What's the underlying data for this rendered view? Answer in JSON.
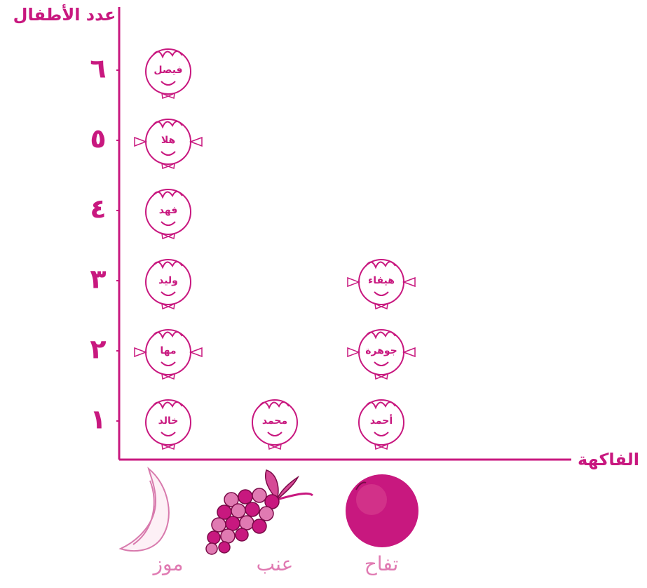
{
  "chart_data": {
    "type": "pictograph",
    "y_label": "عدد الأطفال",
    "x_label": "الفاكهة",
    "categories": [
      "موز",
      "عنب",
      "تفاح"
    ],
    "values": [
      6,
      1,
      3
    ],
    "faces": [
      [
        {
          "name": "خالد",
          "bows": false
        },
        {
          "name": "مها",
          "bows": true
        },
        {
          "name": "وليد",
          "bows": false
        },
        {
          "name": "فهد",
          "bows": false
        },
        {
          "name": "هلا",
          "bows": true
        },
        {
          "name": "فيصل",
          "bows": false
        }
      ],
      [
        {
          "name": "محمد",
          "bows": false
        }
      ],
      [
        {
          "name": "أحمد",
          "bows": false
        },
        {
          "name": "جوهرة",
          "bows": true
        },
        {
          "name": "هيفاء",
          "bows": true
        }
      ]
    ],
    "color": "#c8187f",
    "ylim": [
      0.45,
      6.9
    ],
    "yticks": [
      {
        "value": 1,
        "label": "١"
      },
      {
        "value": 2,
        "label": "٢"
      },
      {
        "value": 3,
        "label": "٣"
      },
      {
        "value": 4,
        "label": "٤"
      },
      {
        "value": 5,
        "label": "٥"
      },
      {
        "value": 6,
        "label": "٦"
      }
    ]
  }
}
